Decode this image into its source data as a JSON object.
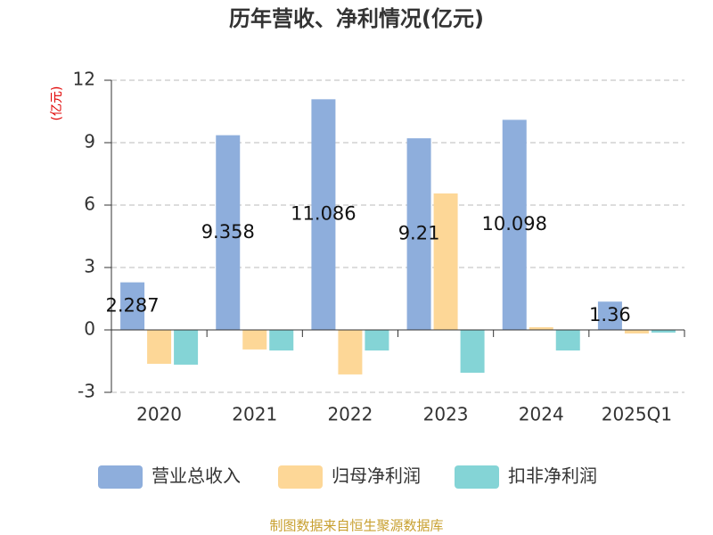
{
  "chart_data": {
    "type": "bar",
    "title": "历年营收、净利情况(亿元)",
    "y_label": "(亿元)",
    "categories": [
      "2020",
      "2021",
      "2022",
      "2023",
      "2024",
      "2025Q1"
    ],
    "series": [
      {
        "name": "营业总收入",
        "color": "#8eaedc",
        "values": [
          2.287,
          9.358,
          11.086,
          9.21,
          10.098,
          1.36
        ]
      },
      {
        "name": "归母净利润",
        "color": "#fdd797",
        "values": [
          -1.63,
          -0.94,
          -2.14,
          6.56,
          0.13,
          -0.17
        ]
      },
      {
        "name": "扣非净利润",
        "color": "#84d4d6",
        "values": [
          -1.67,
          -0.99,
          -0.99,
          -2.06,
          -0.99,
          -0.13
        ]
      }
    ],
    "ylim": [
      -3,
      12
    ],
    "yticks": [
      -3,
      0,
      3,
      6,
      9,
      12
    ],
    "grid": true,
    "source": "制图数据来自恒生聚源数据库"
  }
}
